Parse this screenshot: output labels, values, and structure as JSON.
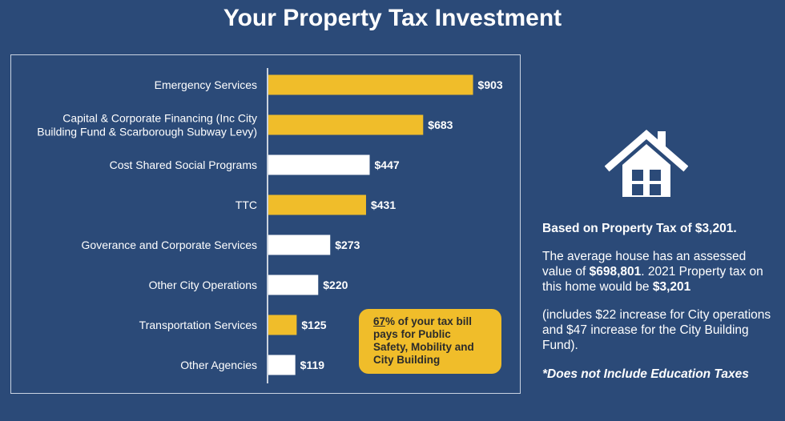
{
  "title": "Your Property Tax Investment",
  "chart_data": {
    "type": "bar",
    "orientation": "horizontal",
    "categories": [
      [
        "Emergency Services"
      ],
      [
        "Capital & Corporate Financing (Inc City",
        "Building Fund & Scarborough Subway Levy)"
      ],
      [
        "Cost Shared Social Programs"
      ],
      [
        "TTC"
      ],
      [
        "Goverance and Corporate Services"
      ],
      [
        "Other City Operations"
      ],
      [
        "Transportation Services"
      ],
      [
        "Other Agencies"
      ]
    ],
    "values": [
      903,
      683,
      447,
      431,
      273,
      220,
      125,
      119
    ],
    "value_labels": [
      "$903",
      "$683",
      "$447",
      "$431",
      "$273",
      "$220",
      "$125",
      "$119"
    ],
    "bar_colors": [
      "#f0bd2a",
      "#f0bd2a",
      "#ffffff",
      "#f0bd2a",
      "#ffffff",
      "#ffffff",
      "#f0bd2a",
      "#ffffff"
    ],
    "xlim": [
      0,
      1000
    ],
    "grid": false
  },
  "callout": {
    "percent": "67",
    "line1_rest": "% of your tax bill",
    "line2": "pays for Public",
    "line3": "Safety, Mobility and",
    "line4": "City Building"
  },
  "side": {
    "heading": "Based on Property Tax of $3,201.",
    "para1_a": "The average house has an assessed value of ",
    "para1_b": "$698,801",
    "para1_c": ". 2021 Property tax on this home would be ",
    "para1_d": "$3,201",
    "para2": "(includes $22 increase for City operations and $47 increase for the City Building Fund).",
    "note": "*Does not Include Education Taxes"
  },
  "icon": "house-icon",
  "colors": {
    "background": "#2b4a78",
    "highlight": "#f0bd2a",
    "bar_white": "#ffffff"
  }
}
